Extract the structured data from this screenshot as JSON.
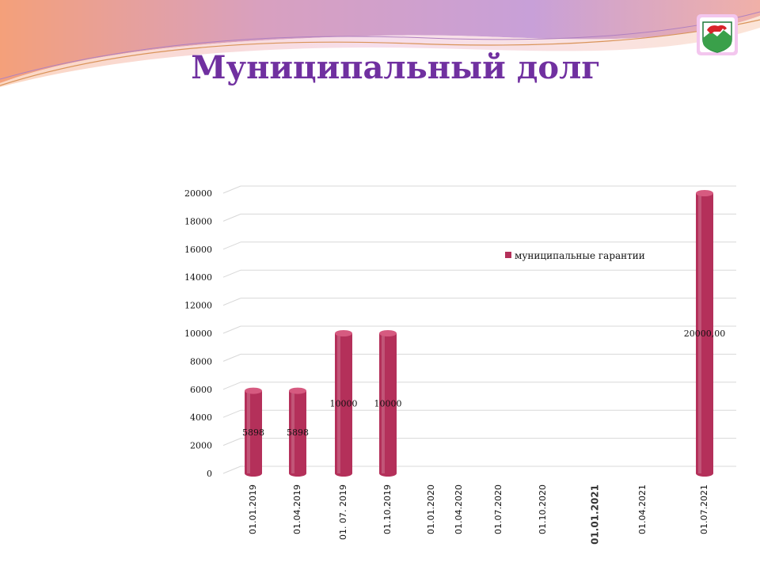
{
  "title": "Муниципальный долг",
  "logo_icon": "coat-of-arms-icon",
  "colors": {
    "title": "#7030a0",
    "bar": "#b4305a",
    "bar_top": "#d65a80"
  },
  "chart_data": {
    "type": "bar",
    "title": "",
    "xlabel": "",
    "ylabel": "",
    "ylim": [
      0,
      20000
    ],
    "yticks": [
      "0",
      "2000",
      "4000",
      "6000",
      "8000",
      "10000",
      "12000",
      "14000",
      "16000",
      "18000",
      "20000"
    ],
    "categories": [
      "01.01.2019",
      "01.04.2019",
      "01. 07. 2019",
      "01.10.2019",
      "01.01.2020",
      "01.04.2020",
      "01.07.2020",
      "01.10.2020",
      "01.01.2021",
      "01.04.2021",
      "01.07.2021"
    ],
    "emphasized_category": "01.01.2021",
    "grid": true,
    "legend_position": "top-right",
    "series": [
      {
        "name": "муниципальные гарантии",
        "values": [
          5898,
          5898,
          10000,
          10000,
          null,
          null,
          null,
          null,
          null,
          null,
          20000
        ],
        "labels": [
          "5898",
          "5898",
          "10000",
          "10000",
          "",
          "",
          "",
          "",
          "",
          "",
          "20000,00"
        ]
      }
    ]
  }
}
